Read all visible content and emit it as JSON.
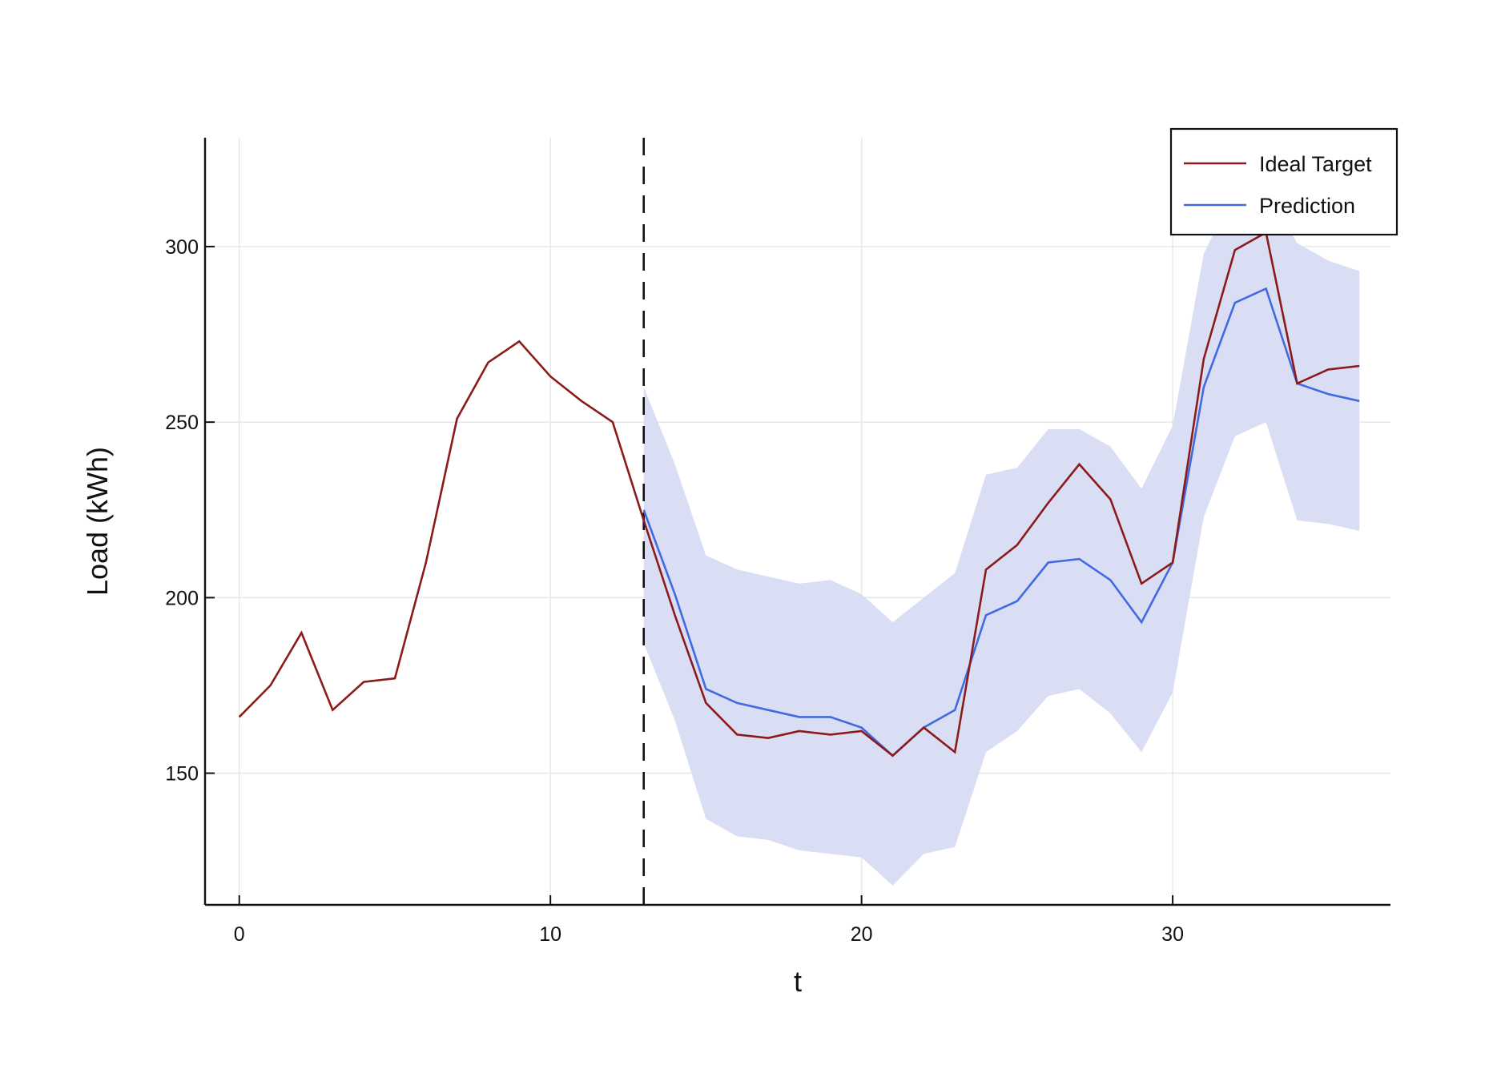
{
  "chart_data": {
    "type": "line",
    "title": "",
    "xlabel": "t",
    "ylabel": "Load (kWh)",
    "xlim": [
      -1.1,
      37
    ],
    "ylim": [
      112.5,
      331
    ],
    "x_ticks": [
      0,
      10,
      20,
      30
    ],
    "y_ticks": [
      150,
      200,
      250,
      300
    ],
    "grid": true,
    "legend_position": "top-right",
    "forecast_start": 13,
    "colors": {
      "ideal_target": "#8b1a1a",
      "prediction": "#4169e1",
      "interval": "#d9def4",
      "grid": "#e6e6e6",
      "axis": "#111111"
    },
    "series": [
      {
        "name": "Ideal Target",
        "x": [
          0,
          1,
          2,
          3,
          4,
          5,
          6,
          7,
          8,
          9,
          10,
          11,
          12,
          13,
          14,
          15,
          16,
          17,
          18,
          19,
          20,
          21,
          22,
          23,
          24,
          25,
          26,
          27,
          28,
          29,
          30,
          31,
          32,
          33,
          34,
          35,
          36
        ],
        "values": [
          166,
          175,
          190,
          168,
          176,
          177,
          210,
          251,
          267,
          273,
          263,
          256,
          250,
          222,
          195,
          170,
          161,
          160,
          162,
          161,
          162,
          155,
          163,
          156,
          208,
          215,
          227,
          238,
          228,
          204,
          210,
          268,
          299,
          304,
          261,
          265,
          266
        ]
      },
      {
        "name": "Prediction",
        "x": [
          13,
          14,
          15,
          16,
          17,
          18,
          19,
          20,
          21,
          22,
          23,
          24,
          25,
          26,
          27,
          28,
          29,
          30,
          31,
          32,
          33,
          34,
          35,
          36
        ],
        "values": [
          225,
          201,
          174,
          170,
          168,
          166,
          166,
          163,
          155,
          163,
          168,
          195,
          199,
          210,
          211,
          205,
          193,
          210,
          260,
          284,
          288,
          261,
          258,
          256
        ]
      }
    ],
    "interval": {
      "x": [
        13,
        14,
        15,
        16,
        17,
        18,
        19,
        20,
        21,
        22,
        23,
        24,
        25,
        26,
        27,
        28,
        29,
        30,
        31,
        32,
        33,
        34,
        35,
        36
      ],
      "lower": [
        187,
        165,
        137,
        132,
        131,
        128,
        127,
        126,
        118,
        127,
        129,
        156,
        162,
        172,
        174,
        167,
        156,
        173,
        223,
        246,
        250,
        222,
        221,
        219
      ],
      "upper": [
        260,
        238,
        212,
        208,
        206,
        204,
        205,
        201,
        193,
        200,
        207,
        235,
        237,
        248,
        248,
        243,
        231,
        249,
        298,
        316,
        316,
        301,
        296,
        293
      ]
    }
  }
}
